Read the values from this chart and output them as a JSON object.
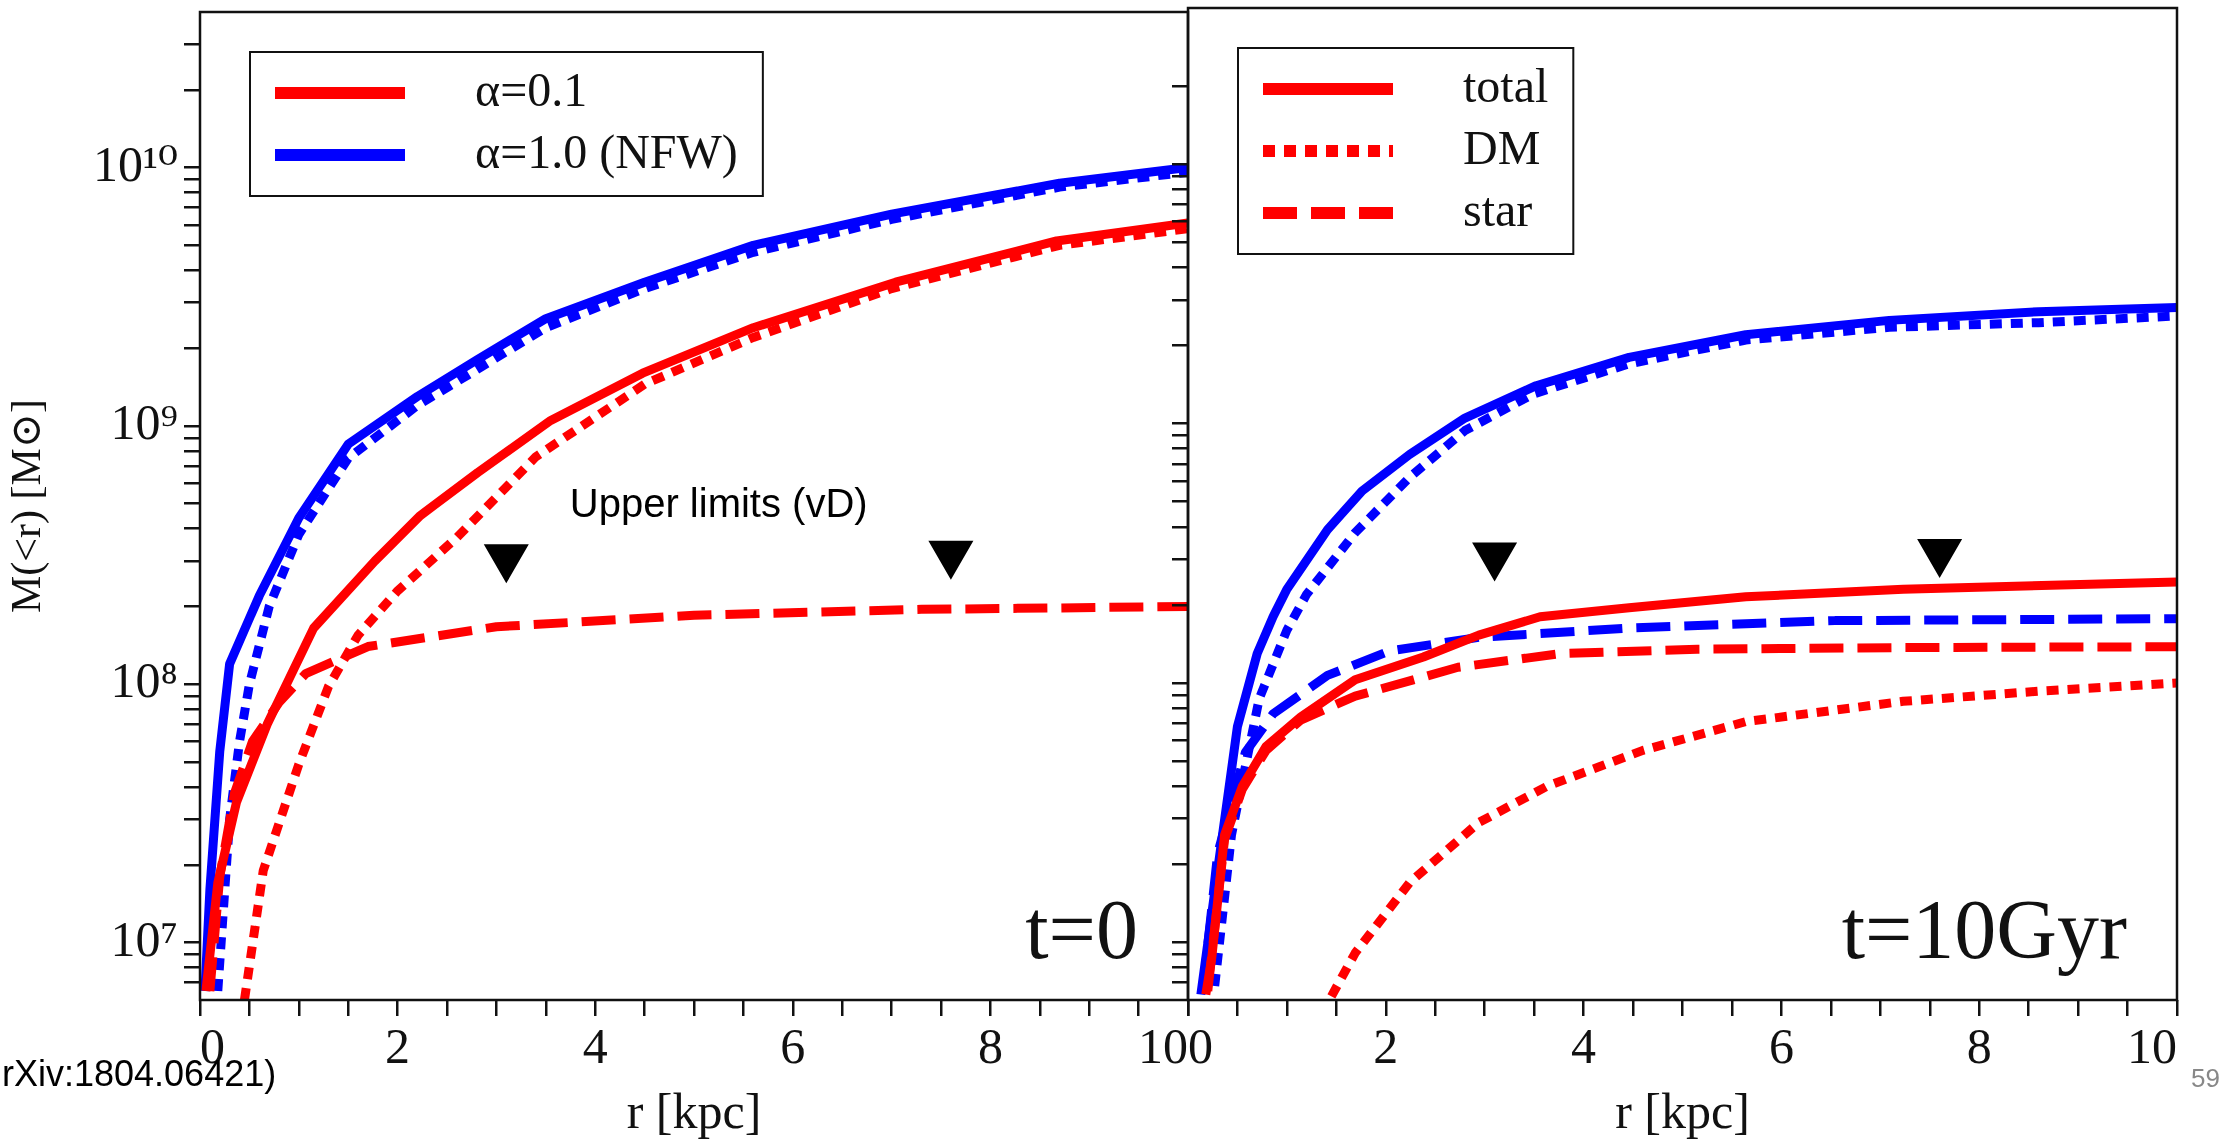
{
  "chart_data": [
    {
      "type": "line",
      "xlabel": "r [kpc]",
      "ylabel": "M(<r) [M⊙]",
      "xlim": [
        0,
        10
      ],
      "ylim": [
        6000000.0,
        40000000000.0
      ],
      "log": "y",
      "grid": false,
      "legend": "top left",
      "xticks": [
        0,
        {
          "value": 0.5,
          "label": null
        },
        {
          "value": 1,
          "label": null
        },
        {
          "value": 1.5,
          "label": null
        },
        2,
        {
          "value": 2.5,
          "label": null
        },
        {
          "value": 3,
          "label": null
        },
        {
          "value": 3.5,
          "label": null
        },
        4,
        {
          "value": 4.5,
          "label": null
        },
        {
          "value": 5,
          "label": null
        },
        {
          "value": 5.5,
          "label": null
        },
        6,
        {
          "value": 6.5,
          "label": null
        },
        {
          "value": 7,
          "label": null
        },
        {
          "value": 7.5,
          "label": null
        },
        8,
        {
          "value": 8.5,
          "label": null
        },
        {
          "value": 9,
          "label": null
        },
        {
          "value": 9.5,
          "label": null
        },
        10
      ],
      "yticks": [
        {
          "value": 7000000.0,
          "label": null
        },
        {
          "value": 8000000.0,
          "label": null
        },
        {
          "value": 9000000.0,
          "label": null
        },
        {
          "value": 10000000.0,
          "label": "10⁷"
        },
        {
          "value": 20000000.0,
          "label": null
        },
        {
          "value": 30000000.0,
          "label": null
        },
        {
          "value": 40000000.0,
          "label": null
        },
        {
          "value": 50000000.0,
          "label": null
        },
        {
          "value": 60000000.0,
          "label": null
        },
        {
          "value": 70000000.0,
          "label": null
        },
        {
          "value": 80000000.0,
          "label": null
        },
        {
          "value": 90000000.0,
          "label": null
        },
        {
          "value": 100000000.0,
          "label": "10⁸"
        },
        {
          "value": 200000000.0,
          "label": null
        },
        {
          "value": 300000000.0,
          "label": null
        },
        {
          "value": 400000000.0,
          "label": null
        },
        {
          "value": 500000000.0,
          "label": null
        },
        {
          "value": 600000000.0,
          "label": null
        },
        {
          "value": 700000000.0,
          "label": null
        },
        {
          "value": 800000000.0,
          "label": null
        },
        {
          "value": 900000000.0,
          "label": null
        },
        {
          "value": 1000000000.0,
          "label": "10⁹"
        },
        {
          "value": 2000000000.0,
          "label": null
        },
        {
          "value": 3000000000.0,
          "label": null
        },
        {
          "value": 4000000000.0,
          "label": null
        },
        {
          "value": 5000000000.0,
          "label": null
        },
        {
          "value": 6000000000.0,
          "label": null
        },
        {
          "value": 7000000000.0,
          "label": null
        },
        {
          "value": 8000000000.0,
          "label": null
        },
        {
          "value": 9000000000.0,
          "label": null
        },
        {
          "value": 10000000000.0,
          "label": "10¹⁰"
        },
        {
          "value": 20000000000.0,
          "label": null
        },
        {
          "value": 30000000000.0,
          "label": null
        }
      ],
      "annotations": [
        "t=0",
        "Upper limits (vD)",
        "rXiv:1804.06421)"
      ],
      "series": [
        {
          "name": "α=0.1",
          "color": "#ff0000",
          "line_style": "solid",
          "x": [
            0.06,
            0.18,
            0.37,
            0.68,
            1.15,
            1.77,
            2.23,
            2.81,
            3.55,
            4.48,
            5.6,
            7.04,
            8.67,
            10
          ],
          "values": [
            6500000.0,
            17000000.0,
            35000000.0,
            70000000.0,
            165000000.0,
            300000000.0,
            450000000.0,
            660000000.0,
            1050000000.0,
            1600000000.0,
            2400000000.0,
            3600000000.0,
            5200000000.0,
            6100000000.0
          ]
        },
        {
          "color": "#ff0000",
          "line_style": "dotted",
          "x": [
            0.45,
            0.64,
            1.0,
            1.3,
            1.6,
            2.0,
            2.6,
            3.4,
            4.5,
            5.6,
            7.0,
            8.7,
            10
          ],
          "values": [
            6000000.0,
            19000000.0,
            49000000.0,
            98000000.0,
            155000000.0,
            230000000.0,
            370000000.0,
            760000000.0,
            1450000000.0,
            2200000000.0,
            3400000000.0,
            5000000000.0,
            5800000000.0
          ]
        },
        {
          "color": "#ff0000",
          "line_style": "dashed",
          "x": [
            0.1,
            0.2,
            0.35,
            0.53,
            0.8,
            1.07,
            1.7,
            3.0,
            5.0,
            7.3,
            10
          ],
          "values": [
            6500000.0,
            18000000.0,
            38000000.0,
            60000000.0,
            85000000.0,
            110000000.0,
            140000000.0,
            167000000.0,
            185000000.0,
            195000000.0,
            200000000.0
          ]
        },
        {
          "name": "α=1.0 (NFW)",
          "color": "#0000ff",
          "line_style": "solid",
          "x": [
            0.05,
            0.1,
            0.2,
            0.3,
            0.6,
            1.0,
            1.5,
            2.2,
            2.8,
            3.5,
            4.5,
            5.6,
            7.0,
            8.7,
            10
          ],
          "values": [
            6500000.0,
            16000000.0,
            55000000.0,
            120000000.0,
            220000000.0,
            440000000.0,
            850000000.0,
            1300000000.0,
            1800000000.0,
            2600000000.0,
            3600000000.0,
            5000000000.0,
            6600000000.0,
            8700000000.0,
            10000000000.0
          ]
        },
        {
          "color": "#0000ff",
          "line_style": "dotted",
          "x": [
            0.18,
            0.3,
            0.4,
            0.5,
            0.7,
            1.0,
            1.5,
            2.2,
            2.8,
            3.5,
            4.5,
            5.6,
            7.0,
            8.7,
            10
          ],
          "values": [
            6500000.0,
            30000000.0,
            60000000.0,
            100000000.0,
            200000000.0,
            380000000.0,
            750000000.0,
            1200000000.0,
            1650000000.0,
            2400000000.0,
            3400000000.0,
            4700000000.0,
            6300000000.0,
            8400000000.0,
            9600000000.0
          ]
        },
        {
          "type": "scatter",
          "marker": "triangle",
          "color": "#000000",
          "x": [
            3.1,
            7.6
          ],
          "values": [
            310000000.0,
            320000000.0
          ]
        }
      ]
    },
    {
      "type": "line",
      "xlabel": "r [kpc]",
      "xlim": [
        0,
        10
      ],
      "ylim": [
        6000000.0,
        40000000000.0
      ],
      "log": "y",
      "grid": false,
      "legend": "top left",
      "tick_labels": "x",
      "xticks": [
        0,
        {
          "value": 0.5,
          "label": null
        },
        {
          "value": 1,
          "label": null
        },
        {
          "value": 1.5,
          "label": null
        },
        2,
        {
          "value": 2.5,
          "label": null
        },
        {
          "value": 3,
          "label": null
        },
        {
          "value": 3.5,
          "label": null
        },
        4,
        {
          "value": 4.5,
          "label": null
        },
        {
          "value": 5,
          "label": null
        },
        {
          "value": 5.5,
          "label": null
        },
        6,
        {
          "value": 6.5,
          "label": null
        },
        {
          "value": 7,
          "label": null
        },
        {
          "value": 7.5,
          "label": null
        },
        8,
        {
          "value": 8.5,
          "label": null
        },
        {
          "value": 9,
          "label": null
        },
        {
          "value": 9.5,
          "label": null
        },
        10
      ],
      "yticks": [
        {
          "value": 7000000.0,
          "label": null
        },
        {
          "value": 8000000.0,
          "label": null
        },
        {
          "value": 9000000.0,
          "label": null
        },
        {
          "value": 10000000.0,
          "label": null
        },
        {
          "value": 20000000.0,
          "label": null
        },
        {
          "value": 30000000.0,
          "label": null
        },
        {
          "value": 40000000.0,
          "label": null
        },
        {
          "value": 50000000.0,
          "label": null
        },
        {
          "value": 60000000.0,
          "label": null
        },
        {
          "value": 70000000.0,
          "label": null
        },
        {
          "value": 80000000.0,
          "label": null
        },
        {
          "value": 90000000.0,
          "label": null
        },
        {
          "value": 100000000.0,
          "label": null
        },
        {
          "value": 200000000.0,
          "label": null
        },
        {
          "value": 300000000.0,
          "label": null
        },
        {
          "value": 400000000.0,
          "label": null
        },
        {
          "value": 500000000.0,
          "label": null
        },
        {
          "value": 600000000.0,
          "label": null
        },
        {
          "value": 700000000.0,
          "label": null
        },
        {
          "value": 800000000.0,
          "label": null
        },
        {
          "value": 900000000.0,
          "label": null
        },
        {
          "value": 1000000000.0,
          "label": null
        },
        {
          "value": 2000000000.0,
          "label": null
        },
        {
          "value": 3000000000.0,
          "label": null
        },
        {
          "value": 4000000000.0,
          "label": null
        },
        {
          "value": 5000000000.0,
          "label": null
        },
        {
          "value": 6000000000.0,
          "label": null
        },
        {
          "value": 7000000000.0,
          "label": null
        },
        {
          "value": 8000000000.0,
          "label": null
        },
        {
          "value": 9000000000.0,
          "label": null
        },
        {
          "value": 10000000000.0,
          "label": null
        },
        {
          "value": 20000000000.0,
          "label": null
        }
      ],
      "annotations": [
        "t=10Gyr",
        "59"
      ],
      "series": [
        {
          "name": "total",
          "color": "#ff0000",
          "line_style": "solid",
          "x": [
            0.18,
            0.24,
            0.37,
            0.55,
            0.79,
            1.14,
            1.69,
            2.38,
            2.94,
            3.56,
            4.46,
            5.64,
            7.23,
            10
          ],
          "values": [
            6300000.0,
            8700000.0,
            26000000.0,
            40000000.0,
            57000000.0,
            74000000.0,
            103000000.0,
            126000000.0,
            153000000.0,
            180000000.0,
            195000000.0,
            215000000.0,
            230000000.0,
            245000000.0
          ]
        },
        {
          "name": "DM",
          "color": "#ff0000",
          "line_style": "dotted",
          "x": [
            1.45,
            1.69,
            2.24,
            2.94,
            3.63,
            4.6,
            5.64,
            7.23,
            8.6,
            10
          ],
          "values": [
            6200000.0,
            9100000.0,
            17000000.0,
            29000000.0,
            40000000.0,
            55000000.0,
            71000000.0,
            85000000.0,
            93000000.0,
            100000000.0
          ]
        },
        {
          "name": "star",
          "color": "#ff0000",
          "line_style": "dashed",
          "x": [
            0.2,
            0.37,
            0.55,
            0.79,
            1.14,
            1.69,
            2.73,
            3.77,
            5.15,
            7.23,
            10
          ],
          "values": [
            6500000.0,
            25000000.0,
            39000000.0,
            55000000.0,
            72000000.0,
            89000000.0,
            115000000.0,
            130000000.0,
            135000000.0,
            137000000.0,
            138000000.0
          ]
        },
        {
          "color": "#0000ff",
          "line_style": "solid",
          "x": [
            0.13,
            0.3,
            0.5,
            0.7,
            0.86,
            1.0,
            1.41,
            1.76,
            2.24,
            2.8,
            3.52,
            4.46,
            5.64,
            7.09,
            8.6,
            10
          ],
          "values": [
            6300000.0,
            19000000.0,
            68000000.0,
            130000000.0,
            180000000.0,
            230000000.0,
            390000000.0,
            550000000.0,
            760000000.0,
            1050000000.0,
            1400000000.0,
            1800000000.0,
            2200000000.0,
            2500000000.0,
            2700000000.0,
            2800000000.0
          ]
        },
        {
          "color": "#0000ff",
          "line_style": "dotted",
          "x": [
            0.27,
            0.44,
            0.72,
            1.0,
            1.2,
            1.69,
            2.24,
            2.8,
            3.49,
            4.46,
            5.64,
            7.09,
            8.6,
            10
          ],
          "values": [
            6800000.0,
            26000000.0,
            87000000.0,
            160000000.0,
            220000000.0,
            380000000.0,
            620000000.0,
            940000000.0,
            1300000000.0,
            1700000000.0,
            2100000000.0,
            2350000000.0,
            2450000000.0,
            2600000000.0
          ]
        },
        {
          "color": "#0000ff",
          "line_style": "dashed",
          "x": [
            0.15,
            0.3,
            0.58,
            0.86,
            1.41,
            2.04,
            2.94,
            4.46,
            6.54,
            10
          ],
          "values": [
            6500000.0,
            22000000.0,
            54000000.0,
            76000000.0,
            107000000.0,
            133000000.0,
            150000000.0,
            163000000.0,
            174000000.0,
            177000000.0
          ]
        },
        {
          "type": "scatter",
          "marker": "triangle",
          "color": "#000000",
          "x": [
            3.1,
            7.6
          ],
          "values": [
            310000000.0,
            320000000.0
          ]
        }
      ]
    }
  ]
}
